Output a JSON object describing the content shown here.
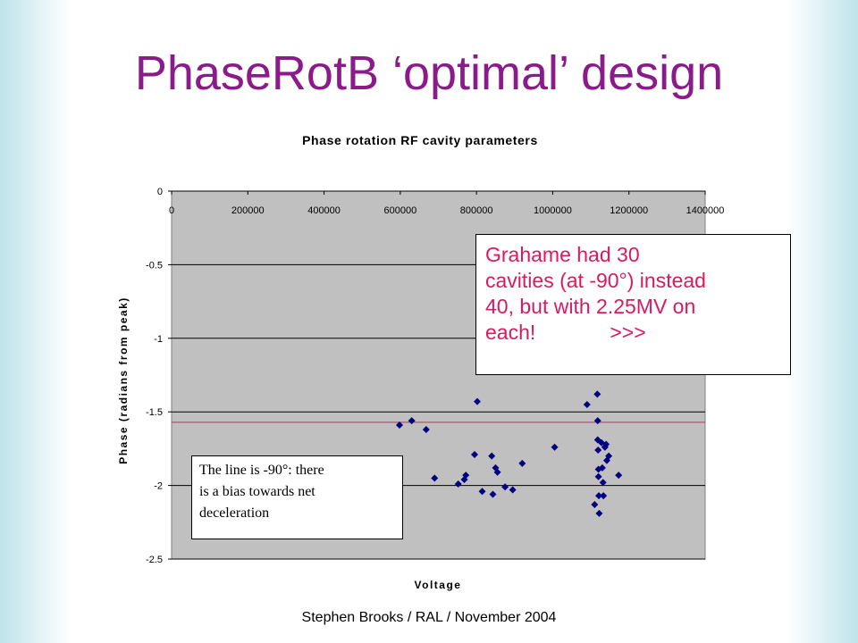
{
  "slide": {
    "title": "PhaseRotB ‘optimal’ design",
    "footer": "Stephen Brooks / RAL / November 2004"
  },
  "callouts": {
    "pink": {
      "lines": [
        "Grahame had 30",
        "cavities (at -90°) instead",
        "40, but with 2.25MV on",
        "each!             >>>"
      ],
      "color": "#d81b60"
    },
    "note": {
      "lines": [
        "The line is -90°: there",
        "is a bias towards net",
        "deceleration"
      ]
    }
  },
  "chart_data": {
    "type": "scatter",
    "title": "Phase rotation RF cavity parameters",
    "xlabel": "Voltage",
    "ylabel": "Phase (radians from peak)",
    "xlim": [
      0,
      1400000
    ],
    "ylim": [
      -2.5,
      0
    ],
    "x_ticks": [
      "0",
      "200000",
      "400000",
      "600000",
      "800000",
      "1000000",
      "1200000",
      "1400000"
    ],
    "y_ticks": [
      "0",
      "-0.5",
      "-1",
      "-1.5",
      "-2",
      "-2.5"
    ],
    "grid": "horizontal",
    "plot_background": "#c0c0c0",
    "marker_color": "#000080",
    "reference_line": {
      "y": -1.5708,
      "color": "#a04060"
    },
    "points": [
      [
        598000,
        -1.59
      ],
      [
        630000,
        -1.56
      ],
      [
        668000,
        -1.62
      ],
      [
        690000,
        -1.95
      ],
      [
        752000,
        -1.99
      ],
      [
        768000,
        -1.96
      ],
      [
        772000,
        -1.93
      ],
      [
        795000,
        -1.79
      ],
      [
        802000,
        -1.43
      ],
      [
        815000,
        -2.04
      ],
      [
        840000,
        -1.8
      ],
      [
        843000,
        -2.06
      ],
      [
        850000,
        -1.88
      ],
      [
        855000,
        -1.91
      ],
      [
        875000,
        -2.01
      ],
      [
        895000,
        -2.03
      ],
      [
        920000,
        -1.85
      ],
      [
        1005000,
        -1.74
      ],
      [
        1090000,
        -1.45
      ],
      [
        1110000,
        -2.13
      ],
      [
        1117000,
        -1.38
      ],
      [
        1118000,
        -1.56
      ],
      [
        1118000,
        -1.69
      ],
      [
        1119000,
        -1.76
      ],
      [
        1120000,
        -1.89
      ],
      [
        1120000,
        -1.94
      ],
      [
        1121000,
        -2.07
      ],
      [
        1122000,
        -2.19
      ],
      [
        1128000,
        -1.71
      ],
      [
        1130000,
        -1.88
      ],
      [
        1132000,
        -1.98
      ],
      [
        1133000,
        -2.07
      ],
      [
        1137000,
        -1.74
      ],
      [
        1140000,
        -1.72
      ],
      [
        1142000,
        -1.83
      ],
      [
        1147000,
        -1.8
      ],
      [
        1173000,
        -1.93
      ]
    ]
  }
}
